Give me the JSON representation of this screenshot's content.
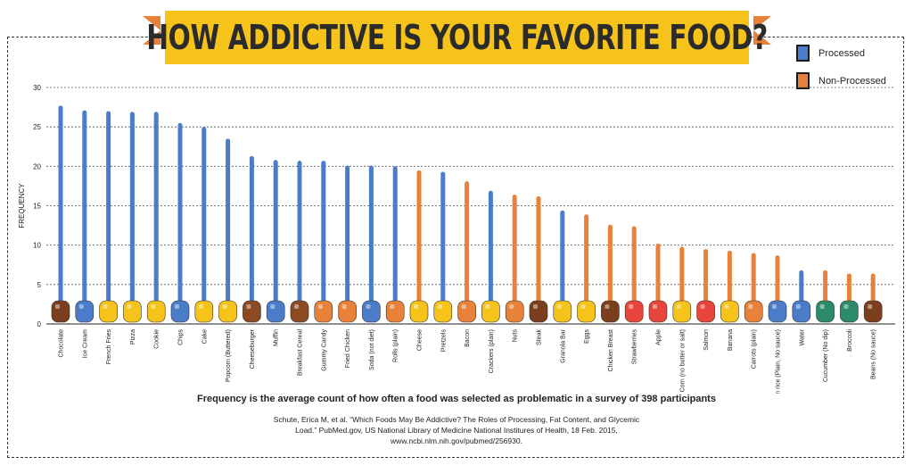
{
  "title": "HOW ADDICTIVE IS YOUR FAVORITE FOOD?",
  "legend": {
    "processed": "Processed",
    "non_processed": "Non-Processed"
  },
  "colors": {
    "processed": "#4a7cc9",
    "non_processed": "#e8823a",
    "banner": "#f6c31a",
    "ribbon": "#e8823a"
  },
  "caption": "Frequency is the average count of how often a food was selected as problematic in a survey of 398 participants",
  "citation": {
    "line1": "Schute, Erica M, et al. “Which Foods May Be Addictive? The Roles of Processing, Fat Content, and Glycemic",
    "line2": "Load.” PubMed.gov, US National Library of Medicine National Institures of Health, 18 Feb. 2015,",
    "line3": "www.ncbi.nlm.nih.gov/pubmed/256930."
  },
  "chart_data": {
    "type": "bar",
    "ylabel": "FREQUENCY",
    "xlabel": "",
    "ylim": [
      0,
      30
    ],
    "yticks": [
      0,
      5,
      10,
      15,
      20,
      25,
      30
    ],
    "grid": true,
    "legend_position": "top-right",
    "categories": [
      "Chocolate",
      "Ice Cream",
      "French Fries",
      "Pizza",
      "Cookie",
      "Chips",
      "Cake",
      "Popcorn (Buttered)",
      "Cheeseburger",
      "Muffin",
      "Breakfast Cereal",
      "Gummy Candy",
      "Fried Chicken",
      "Soda (not diet)",
      "Rolls (plain)",
      "Cheese",
      "Pretzels",
      "Bacon",
      "Crackers (plain)",
      "Nuts",
      "Steak",
      "Granola Bar",
      "Eggs",
      "Chicken Breast",
      "Strawberries",
      "Apple",
      "Corn (no butter or salt)",
      "Salmon",
      "Banana",
      "Carrots (plain)",
      "Brown rice (Plain, No sauce)",
      "Water",
      "Cucumber (No dip)",
      "Broccoli",
      "Beans (No sauce)"
    ],
    "values": [
      27.7,
      27.1,
      27.0,
      26.9,
      26.9,
      25.5,
      25.0,
      23.5,
      21.3,
      20.8,
      20.7,
      20.7,
      20.1,
      20.1,
      20.0,
      19.5,
      19.3,
      18.1,
      16.9,
      16.4,
      16.2,
      14.4,
      13.9,
      12.6,
      12.4,
      10.2,
      9.8,
      9.5,
      9.3,
      9.0,
      8.7,
      6.8,
      6.8,
      6.4,
      6.4
    ],
    "processing": [
      "processed",
      "processed",
      "processed",
      "processed",
      "processed",
      "processed",
      "processed",
      "processed",
      "processed",
      "processed",
      "processed",
      "processed",
      "processed",
      "processed",
      "processed",
      "non_processed",
      "processed",
      "non_processed",
      "processed",
      "non_processed",
      "non_processed",
      "processed",
      "non_processed",
      "non_processed",
      "non_processed",
      "non_processed",
      "non_processed",
      "non_processed",
      "non_processed",
      "non_processed",
      "non_processed",
      "processed",
      "non_processed",
      "non_processed",
      "non_processed"
    ],
    "icon_colors": [
      "#7b3f1e",
      "#4a7cc9",
      "#f6c31a",
      "#f6c31a",
      "#f6c31a",
      "#4a7cc9",
      "#f6c31a",
      "#f6c31a",
      "#8b4a22",
      "#4a7cc9",
      "#8b4a22",
      "#e8823a",
      "#e8823a",
      "#4a7cc9",
      "#e8823a",
      "#f6c31a",
      "#f6c31a",
      "#e8823a",
      "#f6c31a",
      "#e8823a",
      "#7b3f1e",
      "#f6c31a",
      "#f6c31a",
      "#7b3f1e",
      "#e8453c",
      "#e8453c",
      "#f6c31a",
      "#e8453c",
      "#f6c31a",
      "#e8823a",
      "#4a7cc9",
      "#4a7cc9",
      "#2a8a6a",
      "#2a8a6a",
      "#7b3f1e"
    ]
  }
}
